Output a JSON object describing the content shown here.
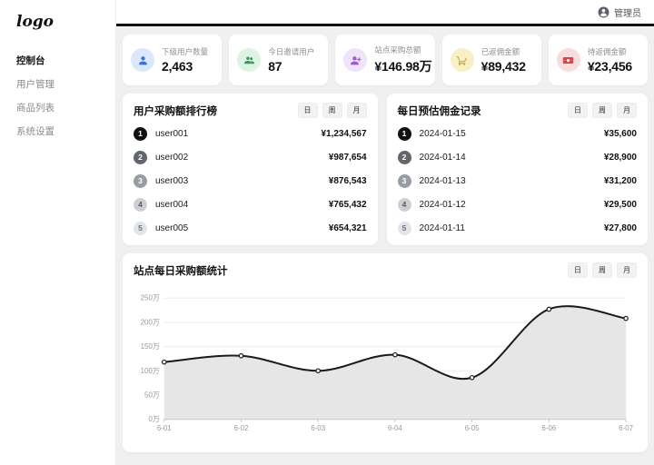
{
  "sidebar": {
    "logo": "logo",
    "items": [
      {
        "label": "控制台",
        "active": true
      },
      {
        "label": "用户管理",
        "active": false
      },
      {
        "label": "商品列表",
        "active": false
      },
      {
        "label": "系统设置",
        "active": false
      }
    ]
  },
  "header": {
    "user_label": "管理员"
  },
  "stats": [
    {
      "label": "下级用户数量",
      "value": "2,463",
      "icon": "user",
      "icon_bg": "#dbe7fb",
      "icon_color": "#3b6fe0"
    },
    {
      "label": "今日邀请用户",
      "value": "87",
      "icon": "users",
      "icon_bg": "#ddf3e4",
      "icon_color": "#2e9e5b"
    },
    {
      "label": "站点采购总额",
      "value": "¥146.98万",
      "icon": "user-plus",
      "icon_bg": "#f0e3fa",
      "icon_color": "#9c59d1"
    },
    {
      "label": "已返佣金额",
      "value": "¥89,432",
      "icon": "cart",
      "icon_bg": "#f8efc6",
      "icon_color": "#c9a227"
    },
    {
      "label": "待返佣金额",
      "value": "¥23,456",
      "icon": "banknote",
      "icon_bg": "#f9dcdc",
      "icon_color": "#d64545"
    }
  ],
  "ranking_panel": {
    "title": "用户采购额排行榜",
    "tabs": [
      "日",
      "周",
      "月"
    ],
    "rows": [
      {
        "rank": "1",
        "name": "user001",
        "value": "¥1,234,567",
        "badge_bg": "#111111",
        "badge_color": "#ffffff"
      },
      {
        "rank": "2",
        "name": "user002",
        "value": "¥987,654",
        "badge_bg": "#62676e",
        "badge_color": "#ffffff"
      },
      {
        "rank": "3",
        "name": "user003",
        "value": "¥876,543",
        "badge_bg": "#989da3",
        "badge_color": "#ffffff"
      },
      {
        "rank": "4",
        "name": "user004",
        "value": "¥765,432",
        "badge_bg": "#ccd0d5",
        "badge_color": "#565b61"
      },
      {
        "rank": "5",
        "name": "user005",
        "value": "¥654,321",
        "badge_bg": "#e1e4e8",
        "badge_color": "#6e7378"
      }
    ]
  },
  "commission_panel": {
    "title": "每日预估佣金记录",
    "tabs": [
      "日",
      "周",
      "月"
    ],
    "rows": [
      {
        "rank": "1",
        "name": "2024-01-15",
        "value": "¥35,600",
        "badge_bg": "#111111",
        "badge_color": "#ffffff"
      },
      {
        "rank": "2",
        "name": "2024-01-14",
        "value": "¥28,900",
        "badge_bg": "#62676e",
        "badge_color": "#ffffff"
      },
      {
        "rank": "3",
        "name": "2024-01-13",
        "value": "¥31,200",
        "badge_bg": "#989da3",
        "badge_color": "#ffffff"
      },
      {
        "rank": "4",
        "name": "2024-01-12",
        "value": "¥29,500",
        "badge_bg": "#ccd0d5",
        "badge_color": "#565b61"
      },
      {
        "rank": "5",
        "name": "2024-01-11",
        "value": "¥27,800",
        "badge_bg": "#e1e4e8",
        "badge_color": "#6e7378"
      }
    ]
  },
  "chart_panel": {
    "title": "站点每日采购额统计",
    "tabs": [
      "日",
      "周",
      "月"
    ]
  },
  "chart_data": {
    "type": "area",
    "title": "站点每日采购额统计",
    "x": [
      "6-01",
      "6-02",
      "6-03",
      "6-04",
      "6-05",
      "6-06",
      "6-07"
    ],
    "values": [
      118,
      131,
      100,
      133,
      86,
      227,
      208
    ],
    "unit": "万",
    "xlabel": "",
    "ylabel": "",
    "ylim": [
      0,
      250
    ],
    "ytick_step": 50,
    "ytick_labels": [
      "0万",
      "50万",
      "100万",
      "150万",
      "200万",
      "250万"
    ],
    "grid": true,
    "legend": false,
    "marker": "circle",
    "line_color": "#1a1a1a",
    "area_color": "#e6e6e6",
    "grid_color": "#ebebeb",
    "axis_color": "#c8c8c8",
    "tick_label_color": "#999999"
  }
}
